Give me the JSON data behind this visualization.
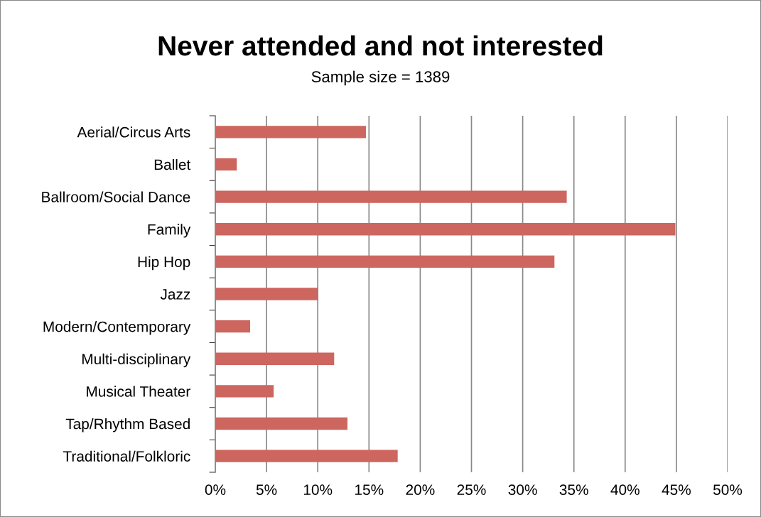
{
  "chart_data": {
    "type": "bar",
    "orientation": "horizontal",
    "title": "Never attended and not interested",
    "subtitle": "Sample size = 1389",
    "categories": [
      "Aerial/Circus Arts",
      "Ballet",
      "Ballroom/Social Dance",
      "Family",
      "Hip Hop",
      "Jazz",
      "Modern/Contemporary",
      "Multi-disciplinary",
      "Musical Theater",
      "Tap/Rhythm Based",
      "Traditional/Folkloric"
    ],
    "values": [
      14.7,
      2.1,
      34.3,
      44.9,
      33.1,
      10.0,
      3.4,
      11.6,
      5.7,
      12.9,
      17.8
    ],
    "color": "#cd665f",
    "xlim": [
      0,
      50
    ],
    "xticks": [
      {
        "value": 0,
        "label": "0%"
      },
      {
        "value": 5,
        "label": "5%"
      },
      {
        "value": 10,
        "label": "10%"
      },
      {
        "value": 15,
        "label": "15%"
      },
      {
        "value": 20,
        "label": "20%"
      },
      {
        "value": 25,
        "label": "25%"
      },
      {
        "value": 30,
        "label": "30%"
      },
      {
        "value": 35,
        "label": "35%"
      },
      {
        "value": 40,
        "label": "40%"
      },
      {
        "value": 45,
        "label": "45%"
      },
      {
        "value": 50,
        "label": "50%"
      }
    ],
    "grid": "x"
  }
}
